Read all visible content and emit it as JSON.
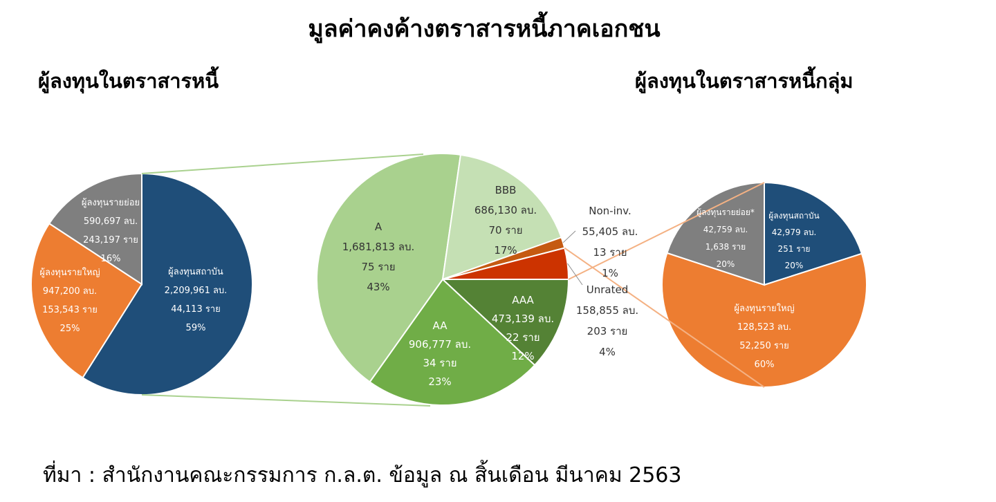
{
  "title": "มูลค่าคงค้างตราสารหนี้ภาคเอกชน",
  "source": "ที่มา : สำนักงานคณะกรรมการ ก.ล.ต. ข้อมูล ณ สิ้นเดือน มีนาคม 2563",
  "colors": {
    "navy": "#1f4e79",
    "orange": "#ed7d31",
    "gray": "#7f7f7f",
    "green_light": "#a9d18e",
    "green_pale": "#c5e0b4",
    "green_mid": "#70ad47",
    "green_dark": "#548235",
    "brown_orange": "#c55a11",
    "red_orange": "#cc3300",
    "connector_green": "#a9d18e",
    "connector_orange": "#f4b183"
  },
  "chart_data": [
    {
      "type": "pie",
      "title": "ผู้ลงทุนในตราสารหนี้",
      "slices": [
        {
          "label": "ผู้ลงทุนสถาบัน",
          "value_text": "2,209,961 ลบ.",
          "count_text": "44,113 ราย",
          "percent_text": "59%",
          "value": 2209961,
          "count": 44113,
          "percent": 59,
          "color": "#1f4e79"
        },
        {
          "label": "ผู้ลงทุนรายใหญ่",
          "value_text": "947,200 ลบ.",
          "count_text": "153,543 ราย",
          "percent_text": "25%",
          "value": 947200,
          "count": 153543,
          "percent": 25,
          "color": "#ed7d31"
        },
        {
          "label": "ผู้ลงทุนรายย่อย",
          "value_text": "590,697 ลบ.",
          "count_text": "243,197 ราย",
          "percent_text": "16%",
          "value": 590697,
          "count": 243197,
          "percent": 16,
          "color": "#7f7f7f"
        }
      ]
    },
    {
      "type": "pie",
      "title": "",
      "slices": [
        {
          "label": "AAA",
          "value_text": "473,139 ลบ.",
          "count_text": "22 ราย",
          "percent_text": "12%",
          "value": 473139,
          "count": 22,
          "percent": 12,
          "color": "#548235"
        },
        {
          "label": "AA",
          "value_text": "906,777 ลบ.",
          "count_text": "34 ราย",
          "percent_text": "23%",
          "value": 906777,
          "count": 34,
          "percent": 23,
          "color": "#70ad47"
        },
        {
          "label": "A",
          "value_text": "1,681,813 ลบ.",
          "count_text": "75 ราย",
          "percent_text": "43%",
          "value": 1681813,
          "count": 75,
          "percent": 43,
          "color": "#a9d18e"
        },
        {
          "label": "BBB",
          "value_text": "686,130 ลบ.",
          "count_text": "70 ราย",
          "percent_text": "17%",
          "value": 686130,
          "count": 70,
          "percent": 17,
          "color": "#c5e0b4"
        },
        {
          "label": "Non-inv.",
          "value_text": "55,405 ลบ.",
          "count_text": "13 ราย",
          "percent_text": "1%",
          "value": 55405,
          "count": 13,
          "percent": 1,
          "color": "#c55a11"
        },
        {
          "label": "Unrated",
          "value_text": "158,855 ลบ.",
          "count_text": "203 ราย",
          "percent_text": "4%",
          "value": 158855,
          "count": 203,
          "percent": 4,
          "color": "#cc3300"
        }
      ]
    },
    {
      "type": "pie",
      "title": "ผู้ลงทุนในตราสารหนี้กลุ่ม",
      "slices": [
        {
          "label": "ผู้ลงทุนสถาบัน",
          "value_text": "42,979 ลบ.",
          "count_text": "251 ราย",
          "percent_text": "20%",
          "value": 42979,
          "count": 251,
          "percent": 20,
          "color": "#1f4e79"
        },
        {
          "label": "ผู้ลงทุนรายใหญ่",
          "value_text": "128,523 ลบ.",
          "count_text": "52,250 ราย",
          "percent_text": "60%",
          "value": 128523,
          "count": 52250,
          "percent": 60,
          "color": "#ed7d31"
        },
        {
          "label": "ผู้ลงทุนรายย่อย*",
          "value_text": "42,759 ลบ.",
          "count_text": "1,638 ราย",
          "percent_text": "20%",
          "value": 42759,
          "count": 1638,
          "percent": 20,
          "color": "#7f7f7f"
        }
      ]
    }
  ]
}
